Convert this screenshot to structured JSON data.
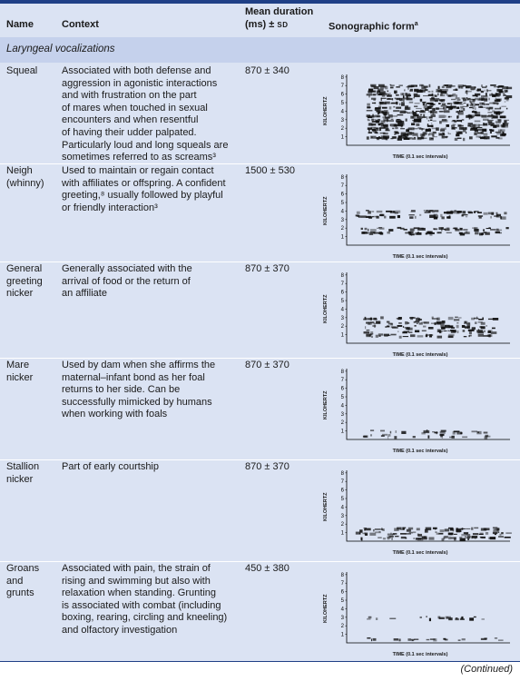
{
  "header": {
    "name": "Name",
    "context": "Context",
    "duration_line1": "Mean duration",
    "duration_line2": "(ms) ±",
    "duration_sd": "SD",
    "sonographic": "Sonographic form",
    "sonographic_sup": "a"
  },
  "section_title": "Laryngeal vocalizations",
  "sonogram_axis": {
    "ylabel": "KILOHERTZ",
    "xlabel": "TIME (0.1 sec intervals)",
    "yticks": [
      "1",
      "2",
      "3",
      "4",
      "5",
      "6",
      "7",
      "8"
    ]
  },
  "rows": [
    {
      "name_lines": [
        "Squeal"
      ],
      "context_lines": [
        "Associated with both defense and",
        "aggression in agonistic interactions",
        "and with frustration on the part",
        "of mares when touched in sexual",
        "encounters and when resentful",
        "of having their udder palpated.",
        "Particularly loud and long squeals are",
        "sometimes referred to as screams³"
      ],
      "duration": "870 ± 340"
    },
    {
      "name_lines": [
        "Neigh",
        "(whinny)"
      ],
      "context_lines": [
        "Used to maintain or regain contact",
        "with affiliates or offspring. A confident",
        "greeting,⁸ usually followed by playful",
        "or friendly interaction³"
      ],
      "duration": "1500 ± 530"
    },
    {
      "name_lines": [
        "General",
        "greeting",
        "nicker"
      ],
      "context_lines": [
        "Generally associated with the",
        "arrival of food or the return of",
        "an affiliate"
      ],
      "duration": "870 ± 370"
    },
    {
      "name_lines": [
        "Mare",
        "nicker"
      ],
      "context_lines": [
        "Used by dam when she affirms the",
        "maternal–infant bond as her foal",
        "returns to her side. Can be",
        "successfully mimicked by humans",
        "when working with foals"
      ],
      "duration": "870 ± 370"
    },
    {
      "name_lines": [
        "Stallion",
        "nicker"
      ],
      "context_lines": [
        "Part of early courtship"
      ],
      "duration": "870 ± 370"
    },
    {
      "name_lines": [
        "Groans",
        "and",
        "grunts"
      ],
      "context_lines": [
        "Associated with pain, the strain of",
        "rising and swimming but also with",
        "relaxation when standing. Grunting",
        "is associated with combat (including",
        "boxing, rearing, circling and kneeling)",
        "and olfactory investigation"
      ],
      "duration": "450 ± 380"
    }
  ],
  "continued": "(Continued)"
}
